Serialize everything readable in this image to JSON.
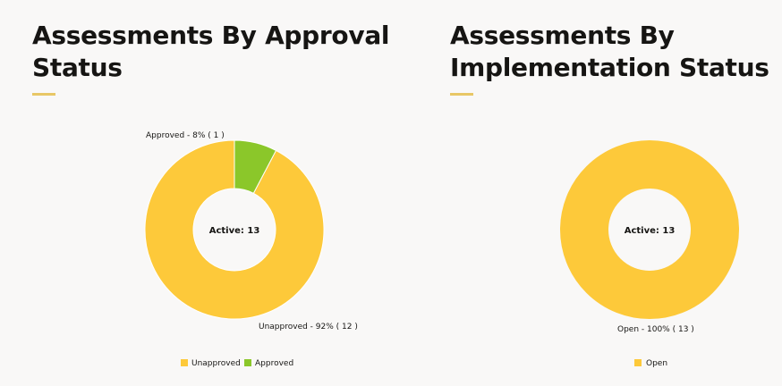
{
  "colors": {
    "background": "#f9f8f7",
    "accent": "#e8c766",
    "unapproved": "#fdc93a",
    "approved": "#8bc72a",
    "open": "#fdc93a",
    "text": "#161513"
  },
  "chart_data": [
    {
      "type": "pie",
      "variant": "donut",
      "title": "Assessments By Approval Status",
      "center_label": "Active: 13",
      "categories": [
        "Unapproved",
        "Approved"
      ],
      "values": [
        12,
        1
      ],
      "data_labels": [
        "Unapproved - 92% ( 12 )",
        "Approved - 8% ( 1 )"
      ],
      "legend": {
        "placement": "bottom-center",
        "entries": [
          "Unapproved",
          "Approved"
        ]
      }
    },
    {
      "type": "pie",
      "variant": "donut",
      "title": "Assessments By Implementation Status",
      "center_label": "Active: 13",
      "categories": [
        "Open"
      ],
      "values": [
        13
      ],
      "data_labels": [
        "Open - 100% ( 13 )"
      ],
      "legend": {
        "placement": "bottom-center",
        "entries": [
          "Open"
        ]
      }
    }
  ]
}
